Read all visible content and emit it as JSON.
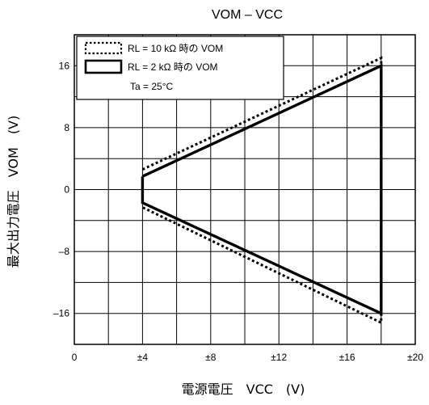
{
  "chart_data": {
    "type": "line",
    "title": "VOM – VCC",
    "xlabel": "電源電圧　VCC　(V)",
    "ylabel": "最大出力電圧　VOM　(V)",
    "xlim": [
      0,
      20
    ],
    "ylim": [
      -20,
      20
    ],
    "x_ticks": [
      0,
      4,
      8,
      12,
      16,
      20
    ],
    "x_tick_labels": [
      "0",
      "±4",
      "±8",
      "±12",
      "±16",
      "±20"
    ],
    "y_ticks": [
      -16,
      -8,
      0,
      8,
      16
    ],
    "y_tick_labels": [
      "–16",
      "–8",
      "0",
      "8",
      "16"
    ],
    "grid": true,
    "legend_position": "top-left",
    "annotation": "Ta = 25°C",
    "series": [
      {
        "name": "RL = 10 kΩ 時の VOM",
        "style": "dotted",
        "points": [
          [
            4,
            2.6
          ],
          [
            18,
            17
          ],
          [
            18,
            -17.2
          ],
          [
            4,
            -2.3
          ]
        ]
      },
      {
        "name": "RL = 2 kΩ 時の VOM",
        "style": "solid",
        "points": [
          [
            4,
            1.7
          ],
          [
            18,
            16
          ],
          [
            18,
            -16
          ],
          [
            4,
            -1.7
          ],
          [
            4,
            1.7
          ]
        ]
      }
    ]
  }
}
